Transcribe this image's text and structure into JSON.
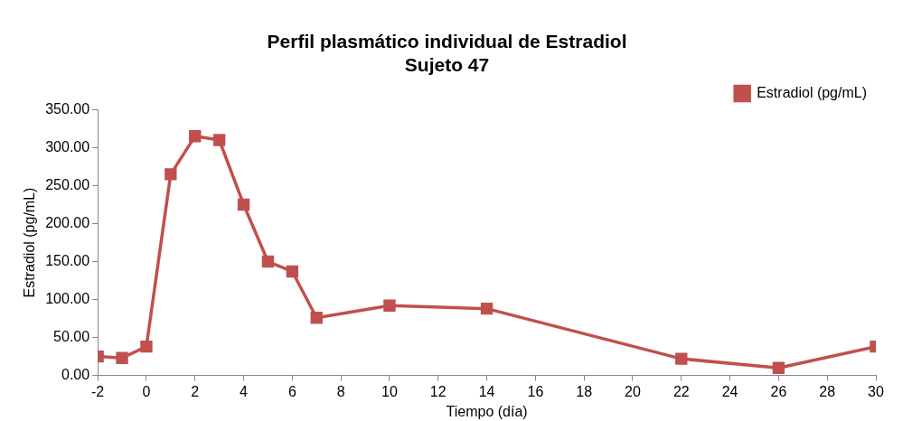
{
  "chart_data": {
    "type": "line",
    "title": "Perfil plasmático individual de Estradiol",
    "subtitle": "Sujeto 47",
    "xlabel": "Tiempo (día)",
    "ylabel": "Estradiol (pg/mL)",
    "x": [
      -2,
      -1,
      0,
      1,
      2,
      3,
      4,
      5,
      6,
      7,
      10,
      14,
      22,
      26,
      30
    ],
    "series": [
      {
        "name": "Estradiol (pg/mL)",
        "color": "#c0504d",
        "values": [
          25,
          23,
          38,
          265,
          315,
          310,
          225,
          150,
          137,
          76,
          92,
          88,
          22,
          10,
          38
        ]
      }
    ],
    "xlim": [
      -2,
      30
    ],
    "xticks": [
      -2,
      0,
      2,
      4,
      6,
      8,
      10,
      12,
      14,
      16,
      18,
      20,
      22,
      24,
      26,
      28,
      30
    ],
    "ylim": [
      0,
      350
    ],
    "yticks": [
      {
        "value": 0,
        "label": "0.00"
      },
      {
        "value": 50,
        "label": "50.00"
      },
      {
        "value": 100,
        "label": "100.00"
      },
      {
        "value": 150,
        "label": "150.00"
      },
      {
        "value": 200,
        "label": "200.00"
      },
      {
        "value": 250,
        "label": "250.00"
      },
      {
        "value": 300,
        "label": "300.00"
      },
      {
        "value": 350,
        "label": "350.00"
      }
    ],
    "grid": false,
    "legend": "top right",
    "marker": "square",
    "line_style": "solid"
  }
}
